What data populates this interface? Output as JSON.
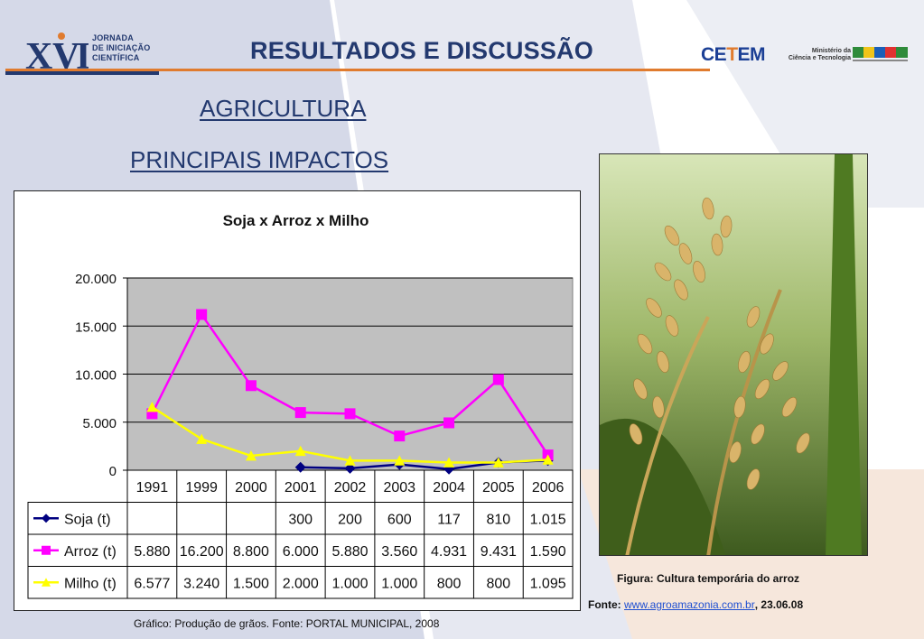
{
  "header": {
    "logo_mark": "XVI",
    "logo_lines": [
      "JORNADA",
      "DE INICIAÇÃO",
      "CIENTÍFICA"
    ],
    "title": "RESULTADOS E DISCUSSÃO",
    "partner_logo": "CETEM",
    "ministry_lines": [
      "Ministério da",
      "Ciência e Tecnologia"
    ],
    "country_logo": "BRASIL"
  },
  "subtitles": {
    "line1": "AGRICULTURA",
    "line2": "PRINCIPAIS IMPACTOS"
  },
  "chart_data": {
    "type": "line",
    "title": "Soja x Arroz x Milho",
    "xlabel": "",
    "ylabel": "",
    "categories": [
      "1991",
      "1999",
      "2000",
      "2001",
      "2002",
      "2003",
      "2004",
      "2005",
      "2006"
    ],
    "ylim": [
      0,
      20000
    ],
    "yticks": [
      0,
      5000,
      10000,
      15000,
      20000
    ],
    "ytick_labels": [
      "0",
      "5.000",
      "10.000",
      "15.000",
      "20.000"
    ],
    "grid": true,
    "plot_background": "#c0c0c0",
    "legend_placement": "data table below chart",
    "series": [
      {
        "name": "Soja (t)",
        "color": "#000080",
        "marker": "diamond",
        "values": [
          null,
          null,
          null,
          300,
          200,
          600,
          117,
          810,
          1015
        ],
        "labels": [
          "",
          "",
          "",
          "300",
          "200",
          "600",
          "117",
          "810",
          "1.015"
        ]
      },
      {
        "name": "Arroz (t)",
        "color": "#ff00ff",
        "marker": "square",
        "values": [
          5880,
          16200,
          8800,
          6000,
          5880,
          3560,
          4931,
          9431,
          1590
        ],
        "labels": [
          "5.880",
          "16.200",
          "8.800",
          "6.000",
          "5.880",
          "3.560",
          "4.931",
          "9.431",
          "1.590"
        ]
      },
      {
        "name": "Milho (t)",
        "color": "#ffff00",
        "marker": "triangle",
        "values": [
          6577,
          3240,
          1500,
          2000,
          1000,
          1000,
          800,
          800,
          1095
        ],
        "labels": [
          "6.577",
          "3.240",
          "1.500",
          "2.000",
          "1.000",
          "1.000",
          "800",
          "800",
          "1.095"
        ]
      }
    ]
  },
  "chart_caption": "Gráfico: Produção de grãos. Fonte: PORTAL MUNICIPAL, 2008",
  "figure": {
    "caption": "Figura: Cultura temporária do arroz",
    "source_prefix": "Fonte: ",
    "source_link": "www.agroamazonia.com.br",
    "source_suffix": ", 23.06.08"
  },
  "colors": {
    "title": "#23396f",
    "accent": "#e07b2e"
  }
}
